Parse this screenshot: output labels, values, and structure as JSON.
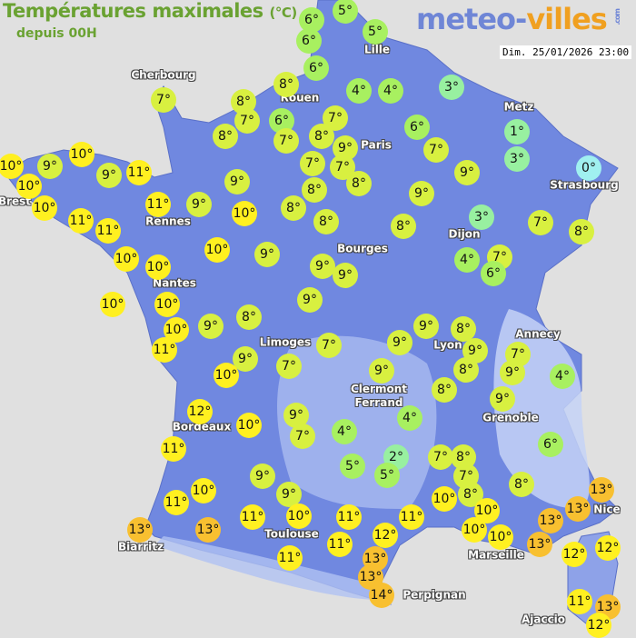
{
  "header": {
    "title": "Températures maximales",
    "unit": "(°C)",
    "subtitle": "depuis 00H",
    "datetime": "Dim. 25/01/2026 23:00"
  },
  "logo": {
    "part1": "meteo-",
    "part2": "villes",
    "suffix": ".com"
  },
  "colors": {
    "sea": "#e0e0e0",
    "land": "#7088e0",
    "cold": "#a0f0f0",
    "t1_3": "#98f0a0",
    "t4_6": "#a8f060",
    "t7_9": "#d8f040",
    "t10_12": "#fff020",
    "t13_14": "#f8c030"
  },
  "cities": [
    "Cherbourg",
    "Lille",
    "Rouen",
    "Metz",
    "Paris",
    "Strasbourg",
    "Brest",
    "Rennes",
    "Dijon",
    "Bourges",
    "Nantes",
    "Annecy",
    "Limoges",
    "Lyon",
    "Clermont\nFerrand",
    "Grenoble",
    "Bordeaux",
    "Nice",
    "Toulouse",
    "Biarritz",
    "Marseille",
    "Perpignan",
    "Ajaccio"
  ],
  "temperatures": [
    5,
    6,
    5,
    6,
    6,
    8,
    4,
    4,
    3,
    7,
    8,
    7,
    6,
    7,
    8,
    7,
    8,
    9,
    6,
    7,
    1,
    3,
    0,
    10,
    9,
    10,
    10,
    9,
    11,
    10,
    11,
    11,
    11,
    9,
    9,
    10,
    8,
    7,
    7,
    8,
    8,
    8,
    8,
    9,
    9,
    3,
    7,
    8,
    10,
    10,
    10,
    9,
    9,
    9,
    4,
    7,
    6,
    10,
    10,
    10,
    11,
    9,
    8,
    9,
    9,
    10,
    7,
    7,
    9,
    9,
    8,
    9,
    8,
    7,
    9,
    4,
    9,
    8,
    9,
    9,
    7,
    4,
    4,
    12,
    10,
    11,
    5,
    2,
    5,
    7,
    8,
    7,
    8,
    6,
    9,
    9,
    10,
    11,
    11,
    10,
    11,
    11,
    10,
    10,
    10,
    10,
    8,
    13,
    13,
    11,
    12,
    11,
    13,
    13,
    14,
    13,
    13,
    13,
    13,
    12,
    12,
    11,
    13,
    12
  ],
  "degree_symbol": "°"
}
